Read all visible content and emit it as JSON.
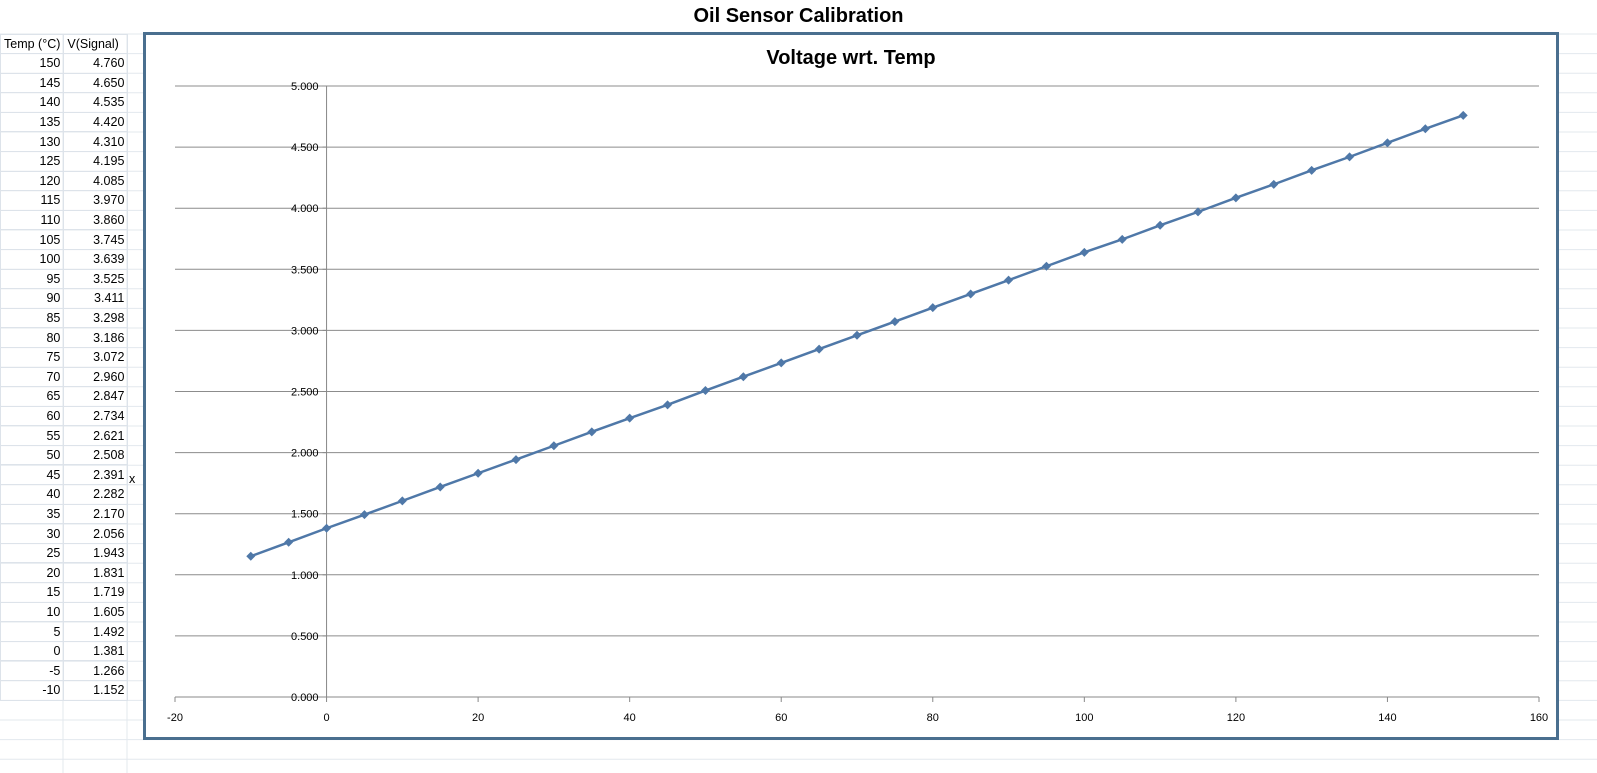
{
  "sheet": {
    "title": "Oil Sensor Calibration",
    "headers": [
      "Temp (°C)",
      "V(Signal)"
    ],
    "rows": [
      [
        "150",
        "4.760"
      ],
      [
        "145",
        "4.650"
      ],
      [
        "140",
        "4.535"
      ],
      [
        "135",
        "4.420"
      ],
      [
        "130",
        "4.310"
      ],
      [
        "125",
        "4.195"
      ],
      [
        "120",
        "4.085"
      ],
      [
        "115",
        "3.970"
      ],
      [
        "110",
        "3.860"
      ],
      [
        "105",
        "3.745"
      ],
      [
        "100",
        "3.639"
      ],
      [
        "95",
        "3.525"
      ],
      [
        "90",
        "3.411"
      ],
      [
        "85",
        "3.298"
      ],
      [
        "80",
        "3.186"
      ],
      [
        "75",
        "3.072"
      ],
      [
        "70",
        "2.960"
      ],
      [
        "65",
        "2.847"
      ],
      [
        "60",
        "2.734"
      ],
      [
        "55",
        "2.621"
      ],
      [
        "50",
        "2.508"
      ],
      [
        "45",
        "2.391"
      ],
      [
        "40",
        "2.282"
      ],
      [
        "35",
        "2.170"
      ],
      [
        "30",
        "2.056"
      ],
      [
        "25",
        "1.943"
      ],
      [
        "20",
        "1.831"
      ],
      [
        "15",
        "1.719"
      ],
      [
        "10",
        "1.605"
      ],
      [
        "5",
        "1.492"
      ],
      [
        "0",
        "1.381"
      ],
      [
        "-5",
        "1.266"
      ],
      [
        "-10",
        "1.152"
      ]
    ],
    "note": "x"
  },
  "colors": {
    "series": "#4f78a8",
    "chart_border": "#4a6f8f",
    "grid": "#8c8c8c"
  },
  "chart_data": {
    "type": "scatter",
    "title": "Voltage wrt. Temp",
    "xlabel": "",
    "ylabel": "",
    "xlim": [
      -20,
      160
    ],
    "ylim": [
      0,
      5
    ],
    "x_ticks": [
      -20,
      0,
      20,
      40,
      60,
      80,
      100,
      120,
      140,
      160
    ],
    "y_ticks": [
      0,
      0.5,
      1,
      1.5,
      2,
      2.5,
      3,
      3.5,
      4,
      4.5,
      5
    ],
    "x_tick_labels": [
      "-20",
      "0",
      "20",
      "40",
      "60",
      "80",
      "100",
      "120",
      "140",
      "160"
    ],
    "y_tick_labels": [
      "0.000",
      "0.500",
      "1.000",
      "1.500",
      "2.000",
      "2.500",
      "3.000",
      "3.500",
      "4.000",
      "4.500",
      "5.000"
    ],
    "grid": "horizontal",
    "legend": "none",
    "marker": "diamond",
    "lines": true,
    "series": [
      {
        "x": [
          -10,
          -5,
          0,
          5,
          10,
          15,
          20,
          25,
          30,
          35,
          40,
          45,
          50,
          55,
          60,
          65,
          70,
          75,
          80,
          85,
          90,
          95,
          100,
          105,
          110,
          115,
          120,
          125,
          130,
          135,
          140,
          145,
          150
        ],
        "y": [
          1.152,
          1.266,
          1.381,
          1.492,
          1.605,
          1.719,
          1.831,
          1.943,
          2.056,
          2.17,
          2.282,
          2.391,
          2.508,
          2.621,
          2.734,
          2.847,
          2.96,
          3.072,
          3.186,
          3.298,
          3.411,
          3.525,
          3.639,
          3.745,
          3.86,
          3.97,
          4.085,
          4.195,
          4.31,
          4.42,
          4.535,
          4.65,
          4.76
        ]
      }
    ]
  }
}
